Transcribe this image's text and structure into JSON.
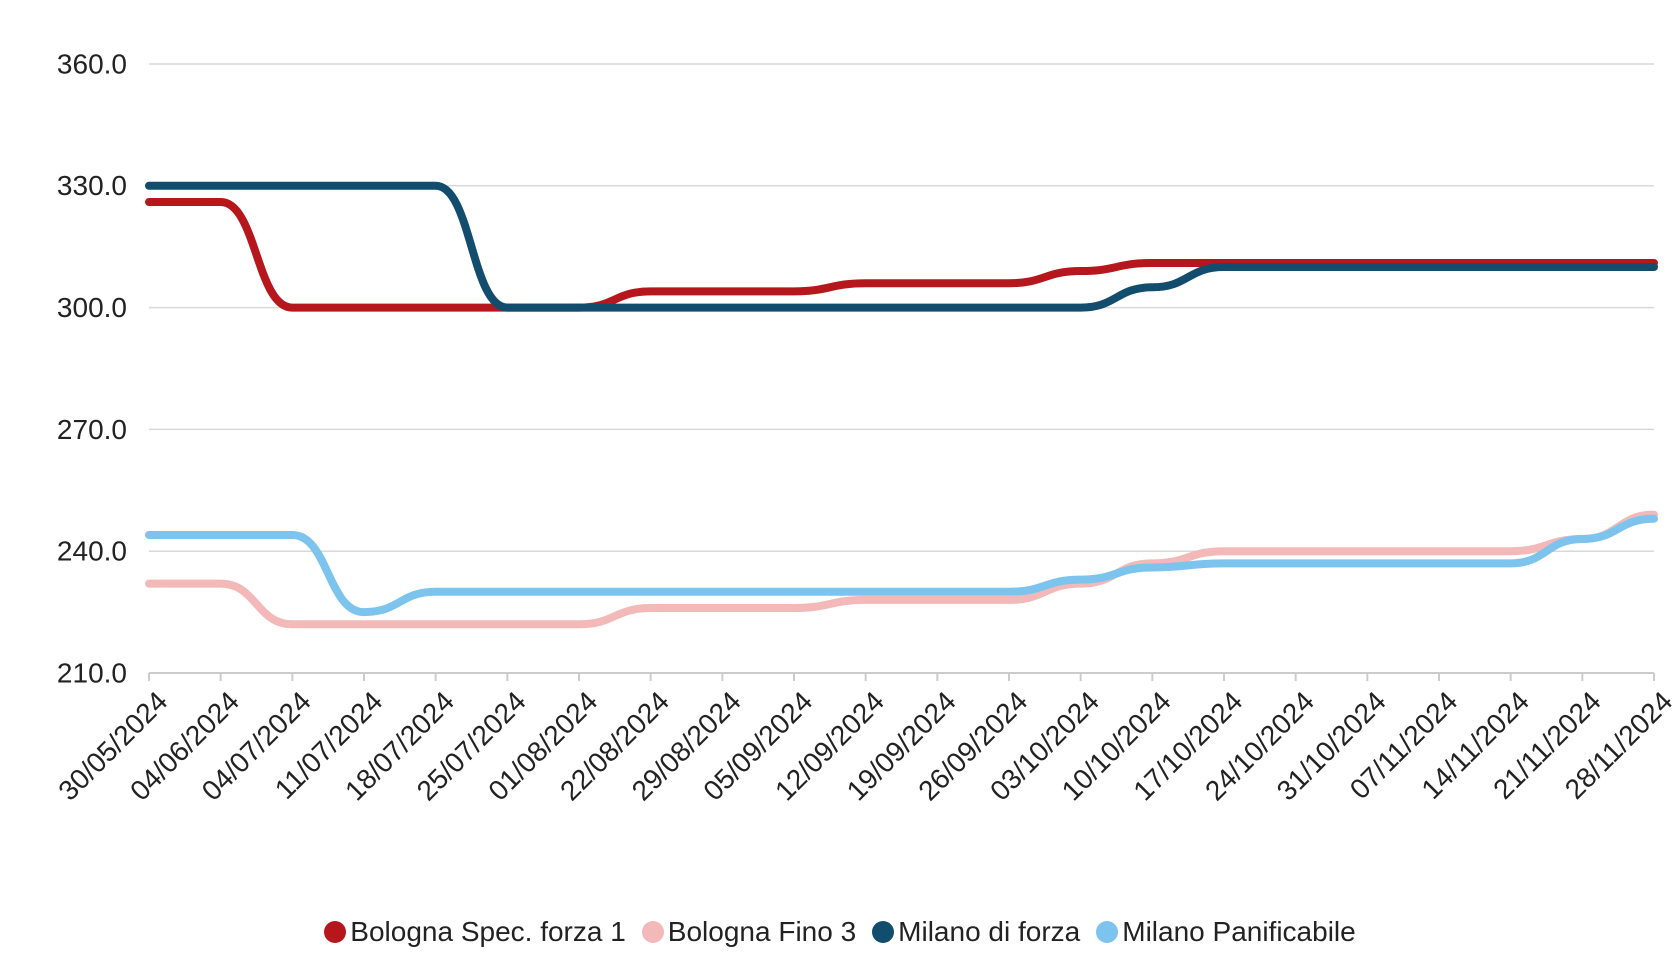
{
  "chart_data": {
    "type": "line",
    "x": [
      "30/05/2024",
      "04/06/2024",
      "04/07/2024",
      "11/07/2024",
      "18/07/2024",
      "25/07/2024",
      "01/08/2024",
      "22/08/2024",
      "29/08/2024",
      "05/09/2024",
      "12/09/2024",
      "19/09/2024",
      "26/09/2024",
      "03/10/2024",
      "10/10/2024",
      "17/10/2024",
      "24/10/2024",
      "31/10/2024",
      "07/11/2024",
      "14/11/2024",
      "21/11/2024",
      "28/11/2024"
    ],
    "y_ticks": [
      "210.0",
      "240.0",
      "270.0",
      "300.0",
      "330.0",
      "360.0"
    ],
    "ylim": [
      210,
      360
    ],
    "grid": true,
    "legend_position": "bottom",
    "series": [
      {
        "name": "Bologna Spec. forza 1",
        "color": "#b5171c",
        "values": [
          326,
          326,
          300,
          300,
          300,
          300,
          300,
          304,
          304,
          304,
          306,
          306,
          306,
          309,
          311,
          311,
          311,
          311,
          311,
          311,
          311,
          311
        ]
      },
      {
        "name": "Bologna Fino 3",
        "color": "#f3b8b8",
        "values": [
          232,
          232,
          222,
          222,
          222,
          222,
          222,
          226,
          226,
          226,
          228,
          228,
          228,
          232,
          237,
          240,
          240,
          240,
          240,
          240,
          243,
          249
        ]
      },
      {
        "name": "Milano di forza",
        "color": "#134d6e",
        "values": [
          330,
          330,
          330,
          330,
          330,
          300,
          300,
          300,
          300,
          300,
          300,
          300,
          300,
          300,
          305,
          310,
          310,
          310,
          310,
          310,
          310,
          310
        ]
      },
      {
        "name": "Milano Panificabile",
        "color": "#7cc4ee",
        "values": [
          244,
          244,
          244,
          225,
          230,
          230,
          230,
          230,
          230,
          230,
          230,
          230,
          230,
          233,
          236,
          237,
          237,
          237,
          237,
          237,
          243,
          248
        ]
      }
    ]
  }
}
